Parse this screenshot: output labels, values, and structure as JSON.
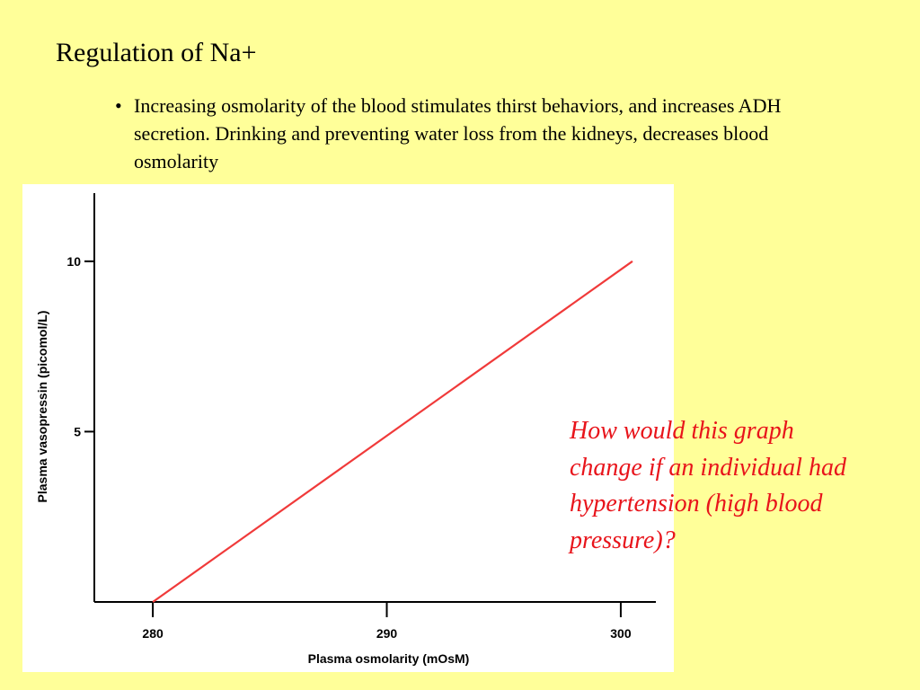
{
  "slide": {
    "title": "Regulation of Na+",
    "bullet_marker": "•",
    "bullet": "Increasing osmolarity of the blood stimulates thirst behaviors, and increases ADH secretion.  Drinking and preventing water loss from the kidneys, decreases blood osmolarity",
    "question": "How would this graph change if an individual had hypertension (high blood pressure)?"
  },
  "colors": {
    "background": "#ffff99",
    "line": "#f03a3a",
    "question_text": "#e8141b"
  },
  "chart_data": {
    "type": "line",
    "xlabel": "Plasma osmolarity (mOsM)",
    "ylabel": "Plasma vasopressin (picomol/L)",
    "xlim": [
      277.5,
      301.5
    ],
    "ylim": [
      0,
      12
    ],
    "x_ticks": [
      280,
      290,
      300
    ],
    "y_ticks": [
      5,
      10
    ],
    "x_tick_labels": [
      "280",
      "290",
      "300"
    ],
    "y_tick_labels": [
      "5",
      "10"
    ],
    "grid": false,
    "series": [
      {
        "x": [
          280,
          300.5
        ],
        "y": [
          0,
          10
        ]
      }
    ]
  }
}
